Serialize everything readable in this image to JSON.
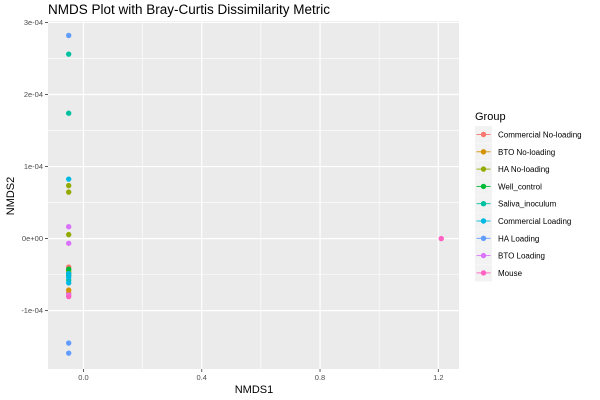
{
  "chart_data": {
    "type": "scatter",
    "title": "NMDS Plot with Bray-Curtis Dissimilarity Metric",
    "xlabel": "NMDS1",
    "ylabel": "NMDS2",
    "xlim": [
      -0.12,
      1.27
    ],
    "ylim": [
      -0.000181,
      0.000302
    ],
    "x_ticks": [
      0.0,
      0.4,
      0.8,
      1.2
    ],
    "x_tick_labels": [
      "0.0",
      "0.4",
      "0.8",
      "1.2"
    ],
    "y_ticks": [
      -0.0001,
      0.0,
      0.0001,
      0.0002,
      0.0003
    ],
    "y_tick_labels": [
      "-1e-04",
      "0e+00",
      "1e-04",
      "2e-04",
      "3e-04"
    ],
    "grid": true,
    "legend": {
      "title": "Group",
      "position": "right"
    },
    "series": [
      {
        "name": "Commercial No-loading",
        "color": "#F8766D",
        "points": [
          [
            -0.05,
            -3.95e-05
          ],
          [
            -0.05,
            -7.55e-05
          ]
        ]
      },
      {
        "name": "BTO No-loading",
        "color": "#D39200",
        "points": [
          [
            -0.05,
            -4.35e-05
          ],
          [
            -0.05,
            -7.15e-05
          ]
        ]
      },
      {
        "name": "HA No-loading",
        "color": "#93AA00",
        "points": [
          [
            -0.05,
            7.35e-05
          ],
          [
            -0.05,
            6.45e-05
          ],
          [
            -0.05,
            5.5e-06
          ],
          [
            -0.05,
            -4.65e-05
          ]
        ]
      },
      {
        "name": "Well_control",
        "color": "#00BA38",
        "points": [
          [
            -0.05,
            -4.25e-05
          ],
          [
            -0.05,
            -5.05e-05
          ]
        ]
      },
      {
        "name": "Saliva_inoculum",
        "color": "#00C19F",
        "points": [
          [
            -0.05,
            0.000256
          ],
          [
            -0.05,
            0.000174
          ],
          [
            -0.05,
            -5.75e-05
          ]
        ]
      },
      {
        "name": "Commercial Loading",
        "color": "#00B9E3",
        "points": [
          [
            -0.05,
            8.25e-05
          ],
          [
            -0.05,
            -4.85e-05
          ],
          [
            -0.05,
            -5.35e-05
          ],
          [
            -0.05,
            -6.15e-05
          ]
        ]
      },
      {
        "name": "HA Loading",
        "color": "#619CFF",
        "points": [
          [
            -0.05,
            0.000282
          ],
          [
            -0.05,
            -0.000145
          ],
          [
            -0.05,
            -0.000159
          ]
        ]
      },
      {
        "name": "BTO Loading",
        "color": "#DB72FB",
        "points": [
          [
            -0.05,
            1.65e-05
          ],
          [
            -0.05,
            -6.5e-06
          ],
          [
            -0.05,
            -7.85e-05
          ]
        ]
      },
      {
        "name": "Mouse",
        "color": "#FF61C3",
        "points": [
          [
            1.21,
            0.0
          ],
          [
            -0.05,
            -8.05e-05
          ]
        ]
      }
    ]
  },
  "colors": {
    "panel_bg": "#EBEBEB",
    "grid_major": "#FFFFFF",
    "legend_key_bg": "#F2F2F2"
  }
}
